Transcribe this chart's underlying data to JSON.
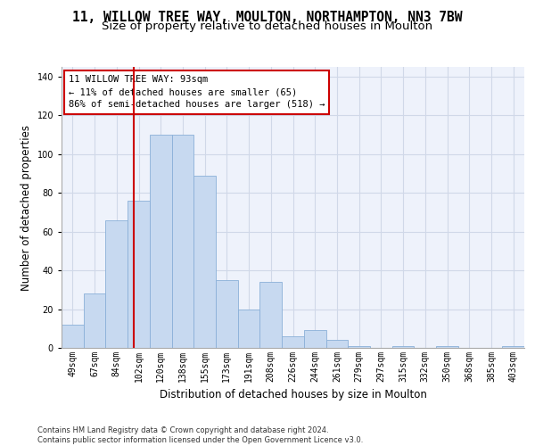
{
  "title_line1": "11, WILLOW TREE WAY, MOULTON, NORTHAMPTON, NN3 7BW",
  "title_line2": "Size of property relative to detached houses in Moulton",
  "xlabel": "Distribution of detached houses by size in Moulton",
  "ylabel": "Number of detached properties",
  "categories": [
    "49sqm",
    "67sqm",
    "84sqm",
    "102sqm",
    "120sqm",
    "138sqm",
    "155sqm",
    "173sqm",
    "191sqm",
    "208sqm",
    "226sqm",
    "244sqm",
    "261sqm",
    "279sqm",
    "297sqm",
    "315sqm",
    "332sqm",
    "350sqm",
    "368sqm",
    "385sqm",
    "403sqm"
  ],
  "values": [
    12,
    28,
    66,
    76,
    110,
    110,
    89,
    35,
    20,
    34,
    6,
    9,
    4,
    1,
    0,
    1,
    0,
    1,
    0,
    0,
    1
  ],
  "bar_color": "#c7d9f0",
  "bar_edge_color": "#8ab0d8",
  "vline_x": 2.78,
  "vline_color": "#cc0000",
  "annotation_text": "11 WILLOW TREE WAY: 93sqm\n← 11% of detached houses are smaller (65)\n86% of semi-detached houses are larger (518) →",
  "annotation_box_color": "#ffffff",
  "annotation_box_edge": "#cc0000",
  "ylim": [
    0,
    145
  ],
  "yticks": [
    0,
    20,
    40,
    60,
    80,
    100,
    120,
    140
  ],
  "grid_color": "#d0d8e8",
  "background_color": "#eef2fb",
  "footer_text": "Contains HM Land Registry data © Crown copyright and database right 2024.\nContains public sector information licensed under the Open Government Licence v3.0.",
  "title_fontsize": 10.5,
  "subtitle_fontsize": 9.5,
  "axis_label_fontsize": 8.5,
  "tick_fontsize": 7,
  "annotation_fontsize": 7.5,
  "footer_fontsize": 6
}
